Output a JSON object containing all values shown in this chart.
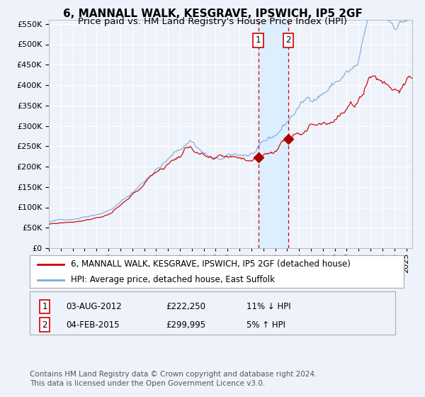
{
  "title": "6, MANNALL WALK, KESGRAVE, IPSWICH, IP5 2GF",
  "subtitle": "Price paid vs. HM Land Registry's House Price Index (HPI)",
  "ytick_vals": [
    0,
    50000,
    100000,
    150000,
    200000,
    250000,
    300000,
    350000,
    400000,
    450000,
    500000,
    550000
  ],
  "ylim": [
    0,
    560000
  ],
  "x_start_year": 1995,
  "x_end_year": 2025,
  "t1_date": "03-AUG-2012",
  "t1_price": "£222,250",
  "t1_hpi": "11% ↓ HPI",
  "t1_year": 2012,
  "t1_month": 7,
  "t2_date": "04-FEB-2015",
  "t2_price": "£299,995",
  "t2_hpi": "5% ↑ HPI",
  "t2_year": 2015,
  "t2_month": 1,
  "legend_property": "6, MANNALL WALK, KESGRAVE, IPSWICH, IP5 2GF (detached house)",
  "legend_hpi": "HPI: Average price, detached house, East Suffolk",
  "line_color_property": "#cc0000",
  "line_color_hpi": "#7aaadd",
  "marker_color": "#aa0000",
  "vline_color": "#cc0000",
  "vband_color": "#ddeeff",
  "footnote1": "Contains HM Land Registry data © Crown copyright and database right 2024.",
  "footnote2": "This data is licensed under the Open Government Licence v3.0.",
  "background_color": "#eef2fa",
  "grid_color": "#ffffff",
  "title_fontsize": 11,
  "subtitle_fontsize": 9.5,
  "tick_fontsize": 8,
  "legend_fontsize": 8.5,
  "footnote_fontsize": 7.5
}
